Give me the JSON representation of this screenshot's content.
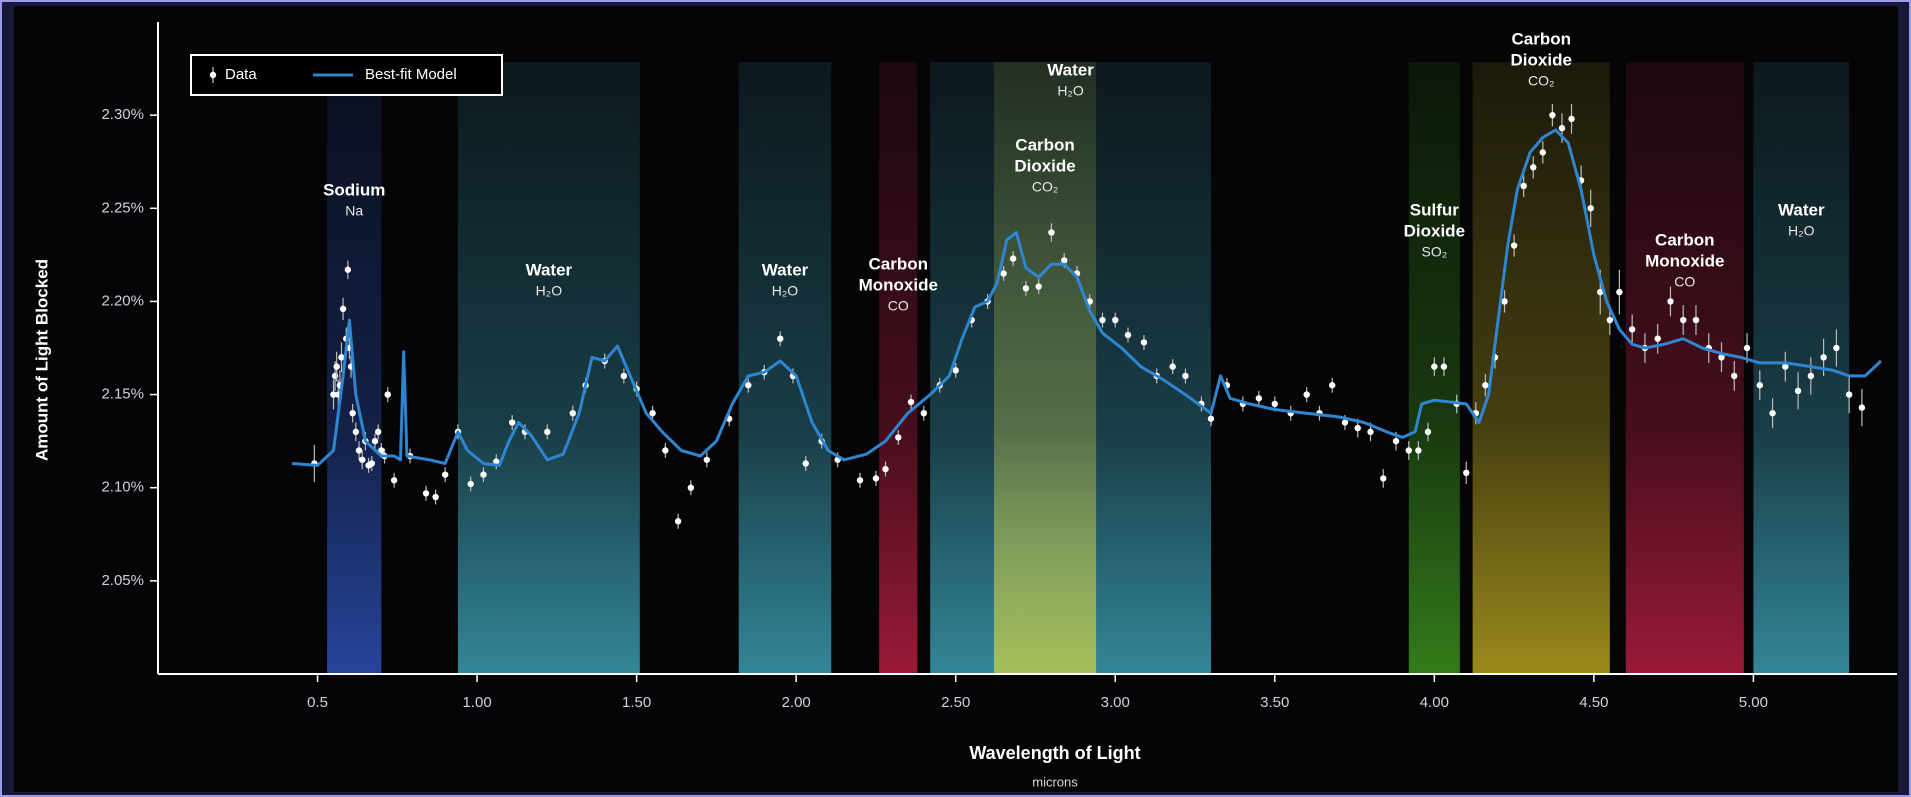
{
  "chart_data": {
    "type": "scatter",
    "xlabel": "Wavelength of Light",
    "xlabel_unit": "microns",
    "ylabel": "Amount of Light Blocked",
    "xlim": [
      0,
      5.45
    ],
    "ylim": [
      2.0,
      2.35
    ],
    "xticks": [
      0.5,
      {
        "value": 1,
        "label": "1.00"
      },
      {
        "value": 1.5,
        "label": "1.50"
      },
      {
        "value": 2,
        "label": "2.00"
      },
      {
        "value": 2.5,
        "label": "2.50"
      },
      {
        "value": 3,
        "label": "3.00"
      },
      {
        "value": 3.5,
        "label": "3.50"
      },
      {
        "value": 4,
        "label": "4.00"
      },
      {
        "value": 4.5,
        "label": "4.50"
      },
      {
        "value": 5,
        "label": "5.00"
      }
    ],
    "yticks": [
      {
        "value": 2.05,
        "label": "2.05%"
      },
      {
        "value": 2.1,
        "label": "2.10%"
      },
      {
        "value": 2.15,
        "label": "2.15%"
      },
      {
        "value": 2.2,
        "label": "2.20%"
      },
      {
        "value": 2.25,
        "label": "2.25%"
      },
      {
        "value": 2.3,
        "label": "2.30%"
      }
    ],
    "grid": false,
    "legend": "upper left",
    "bands": [
      {
        "label": [
          "Sodium"
        ],
        "formula": "Na",
        "range": [
          0.53,
          0.7
        ],
        "color": "#2f55c0"
      },
      {
        "label": [
          "Water"
        ],
        "formula": "H₂O",
        "range": [
          0.94,
          1.51
        ],
        "color": "#3fa6bd"
      },
      {
        "label": [
          "Water"
        ],
        "formula": "H₂O",
        "range": [
          1.82,
          2.11
        ],
        "color": "#3fa6bd"
      },
      {
        "label": [
          "Carbon",
          "Monoxide"
        ],
        "formula": "CO",
        "range": [
          2.26,
          2.38
        ],
        "color": "#c01f45"
      },
      {
        "label": [
          "Water"
        ],
        "formula": "H₂O",
        "range": [
          2.42,
          3.3
        ],
        "color": "#3fa6bd"
      },
      {
        "label": [
          "Carbon",
          "Dioxide"
        ],
        "formula": "CO₂",
        "range": [
          2.62,
          2.94
        ],
        "color": "#c4cc4a"
      },
      {
        "label": [
          "Sulfur",
          "Dioxide"
        ],
        "formula": "SO₂",
        "range": [
          3.92,
          4.08
        ],
        "color": "#3f9a1f"
      },
      {
        "label": [
          "Carbon",
          "Dioxide"
        ],
        "formula": "CO₂",
        "range": [
          4.12,
          4.55
        ],
        "color": "#c0ac22"
      },
      {
        "label": [
          "Carbon",
          "Monoxide"
        ],
        "formula": "CO",
        "range": [
          4.6,
          4.97
        ],
        "color": "#c01f45"
      },
      {
        "label": [
          "Water"
        ],
        "formula": "H₂O",
        "range": [
          5.0,
          5.3
        ],
        "color": "#3fa6bd"
      }
    ],
    "series": [
      {
        "name": "Data",
        "type": "scatter",
        "color": "#ffffff",
        "x": [
          0.49,
          0.55,
          0.555,
          0.56,
          0.565,
          0.57,
          0.575,
          0.58,
          0.59,
          0.595,
          0.6,
          0.605,
          0.61,
          0.62,
          0.63,
          0.64,
          0.65,
          0.66,
          0.67,
          0.68,
          0.69,
          0.7,
          0.71,
          0.72,
          0.74,
          0.79,
          0.84,
          0.87,
          0.9,
          0.94,
          0.98,
          1.02,
          1.06,
          1.11,
          1.15,
          1.22,
          1.3,
          1.34,
          1.4,
          1.46,
          1.5,
          1.55,
          1.59,
          1.63,
          1.67,
          1.72,
          1.79,
          1.85,
          1.9,
          1.95,
          1.99,
          2.03,
          2.08,
          2.13,
          2.2,
          2.25,
          2.28,
          2.32,
          2.36,
          2.4,
          2.45,
          2.5,
          2.55,
          2.6,
          2.65,
          2.68,
          2.72,
          2.76,
          2.8,
          2.84,
          2.88,
          2.92,
          2.96,
          3.0,
          3.04,
          3.09,
          3.13,
          3.18,
          3.22,
          3.27,
          3.3,
          3.35,
          3.4,
          3.45,
          3.5,
          3.55,
          3.6,
          3.64,
          3.68,
          3.72,
          3.76,
          3.8,
          3.84,
          3.88,
          3.92,
          3.95,
          3.98,
          4.0,
          4.03,
          4.07,
          4.1,
          4.13,
          4.16,
          4.19,
          4.22,
          4.25,
          4.28,
          4.31,
          4.34,
          4.37,
          4.4,
          4.43,
          4.46,
          4.49,
          4.52,
          4.55,
          4.58,
          4.62,
          4.66,
          4.7,
          4.74,
          4.78,
          4.82,
          4.86,
          4.9,
          4.94,
          4.98,
          5.02,
          5.06,
          5.1,
          5.14,
          5.18,
          5.22,
          5.26,
          5.3,
          5.34
        ],
        "values": [
          2.113,
          2.15,
          2.16,
          2.165,
          2.15,
          2.155,
          2.17,
          2.196,
          2.18,
          2.217,
          2.175,
          2.165,
          2.14,
          2.13,
          2.12,
          2.115,
          2.125,
          2.112,
          2.113,
          2.125,
          2.13,
          2.12,
          2.117,
          2.15,
          2.104,
          2.117,
          2.097,
          2.095,
          2.107,
          2.13,
          2.102,
          2.107,
          2.114,
          2.135,
          2.13,
          2.13,
          2.14,
          2.155,
          2.168,
          2.16,
          2.153,
          2.14,
          2.12,
          2.082,
          2.1,
          2.115,
          2.137,
          2.155,
          2.162,
          2.18,
          2.16,
          2.113,
          2.125,
          2.115,
          2.104,
          2.105,
          2.11,
          2.127,
          2.146,
          2.14,
          2.155,
          2.163,
          2.19,
          2.2,
          2.215,
          2.223,
          2.207,
          2.208,
          2.237,
          2.222,
          2.215,
          2.2,
          2.19,
          2.19,
          2.182,
          2.178,
          2.16,
          2.165,
          2.16,
          2.145,
          2.137,
          2.155,
          2.145,
          2.148,
          2.145,
          2.14,
          2.15,
          2.14,
          2.155,
          2.135,
          2.132,
          2.13,
          2.105,
          2.125,
          2.12,
          2.12,
          2.13,
          2.165,
          2.165,
          2.145,
          2.108,
          2.14,
          2.155,
          2.17,
          2.2,
          2.23,
          2.262,
          2.272,
          2.28,
          2.3,
          2.293,
          2.298,
          2.265,
          2.25,
          2.205,
          2.19,
          2.205,
          2.185,
          2.175,
          2.18,
          2.2,
          2.19,
          2.19,
          2.175,
          2.17,
          2.16,
          2.175,
          2.155,
          2.14,
          2.165,
          2.152,
          2.16,
          2.17,
          2.175,
          2.15,
          2.143
        ],
        "errors": [
          0.01,
          0.008,
          0.008,
          0.008,
          0.008,
          0.008,
          0.008,
          0.006,
          0.006,
          0.005,
          0.006,
          0.006,
          0.005,
          0.005,
          0.005,
          0.005,
          0.005,
          0.004,
          0.004,
          0.004,
          0.004,
          0.004,
          0.004,
          0.004,
          0.004,
          0.004,
          0.004,
          0.004,
          0.004,
          0.004,
          0.004,
          0.004,
          0.004,
          0.004,
          0.004,
          0.004,
          0.004,
          0.004,
          0.004,
          0.004,
          0.004,
          0.004,
          0.004,
          0.004,
          0.004,
          0.004,
          0.004,
          0.004,
          0.004,
          0.004,
          0.004,
          0.004,
          0.004,
          0.004,
          0.004,
          0.004,
          0.004,
          0.004,
          0.004,
          0.004,
          0.004,
          0.004,
          0.004,
          0.004,
          0.004,
          0.004,
          0.004,
          0.004,
          0.005,
          0.004,
          0.004,
          0.004,
          0.004,
          0.004,
          0.004,
          0.004,
          0.004,
          0.004,
          0.004,
          0.004,
          0.004,
          0.004,
          0.004,
          0.004,
          0.004,
          0.004,
          0.004,
          0.004,
          0.004,
          0.004,
          0.005,
          0.005,
          0.005,
          0.005,
          0.005,
          0.005,
          0.005,
          0.005,
          0.005,
          0.005,
          0.006,
          0.006,
          0.006,
          0.006,
          0.006,
          0.006,
          0.006,
          0.006,
          0.006,
          0.006,
          0.008,
          0.008,
          0.008,
          0.01,
          0.012,
          0.008,
          0.012,
          0.008,
          0.008,
          0.008,
          0.008,
          0.008,
          0.008,
          0.008,
          0.008,
          0.008,
          0.008,
          0.008,
          0.008,
          0.008,
          0.01,
          0.01,
          0.01,
          0.01,
          0.01,
          0.01
        ]
      },
      {
        "name": "Best-fit Model",
        "type": "line",
        "color": "#2f86d0",
        "x": [
          0.42,
          0.5,
          0.55,
          0.58,
          0.6,
          0.62,
          0.65,
          0.7,
          0.74,
          0.76,
          0.77,
          0.78,
          0.85,
          0.9,
          0.94,
          0.97,
          1.02,
          1.07,
          1.1,
          1.13,
          1.17,
          1.22,
          1.27,
          1.32,
          1.36,
          1.4,
          1.44,
          1.48,
          1.53,
          1.58,
          1.64,
          1.7,
          1.75,
          1.8,
          1.85,
          1.9,
          1.95,
          2.0,
          2.05,
          2.1,
          2.15,
          2.22,
          2.28,
          2.35,
          2.42,
          2.48,
          2.52,
          2.56,
          2.6,
          2.63,
          2.66,
          2.69,
          2.72,
          2.76,
          2.8,
          2.84,
          2.88,
          2.92,
          2.96,
          3.02,
          3.08,
          3.15,
          3.22,
          3.3,
          3.33,
          3.36,
          3.42,
          3.5,
          3.6,
          3.7,
          3.78,
          3.85,
          3.9,
          3.94,
          3.96,
          4.0,
          4.05,
          4.1,
          4.14,
          4.17,
          4.2,
          4.23,
          4.26,
          4.3,
          4.34,
          4.38,
          4.42,
          4.46,
          4.5,
          4.54,
          4.58,
          4.62,
          4.66,
          4.72,
          4.78,
          4.84,
          4.9,
          4.96,
          5.02,
          5.1,
          5.18,
          5.25,
          5.3,
          5.35,
          5.4
        ],
        "values": [
          2.113,
          2.112,
          2.12,
          2.16,
          2.19,
          2.15,
          2.125,
          2.117,
          2.117,
          2.115,
          2.173,
          2.117,
          2.115,
          2.113,
          2.13,
          2.12,
          2.113,
          2.112,
          2.125,
          2.135,
          2.128,
          2.115,
          2.118,
          2.14,
          2.17,
          2.168,
          2.176,
          2.16,
          2.14,
          2.13,
          2.12,
          2.117,
          2.125,
          2.145,
          2.16,
          2.162,
          2.168,
          2.16,
          2.135,
          2.12,
          2.115,
          2.118,
          2.125,
          2.14,
          2.15,
          2.16,
          2.18,
          2.197,
          2.2,
          2.21,
          2.233,
          2.237,
          2.218,
          2.213,
          2.22,
          2.22,
          2.213,
          2.195,
          2.183,
          2.175,
          2.165,
          2.158,
          2.15,
          2.14,
          2.16,
          2.148,
          2.145,
          2.142,
          2.14,
          2.138,
          2.135,
          2.13,
          2.127,
          2.13,
          2.145,
          2.147,
          2.146,
          2.145,
          2.135,
          2.15,
          2.19,
          2.23,
          2.26,
          2.28,
          2.288,
          2.292,
          2.285,
          2.26,
          2.225,
          2.2,
          2.185,
          2.177,
          2.175,
          2.177,
          2.18,
          2.175,
          2.172,
          2.17,
          2.167,
          2.167,
          2.165,
          2.163,
          2.16,
          2.16,
          2.168
        ]
      }
    ]
  }
}
